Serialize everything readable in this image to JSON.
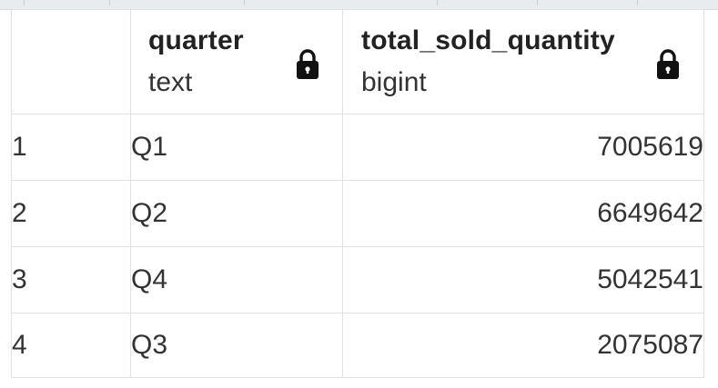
{
  "grid": {
    "columns": [
      {
        "name": "quarter",
        "type": "text",
        "locked": true,
        "icon": "lock-icon"
      },
      {
        "name": "total_sold_quantity",
        "type": "bigint",
        "locked": true,
        "icon": "lock-icon"
      }
    ],
    "rows": [
      {
        "row_number": "1",
        "quarter": "Q1",
        "total_sold_quantity": "7005619"
      },
      {
        "row_number": "2",
        "quarter": "Q2",
        "total_sold_quantity": "6649642"
      },
      {
        "row_number": "3",
        "quarter": "Q4",
        "total_sold_quantity": "5042541"
      },
      {
        "row_number": "4",
        "quarter": "Q3",
        "total_sold_quantity": "2075087"
      }
    ]
  }
}
